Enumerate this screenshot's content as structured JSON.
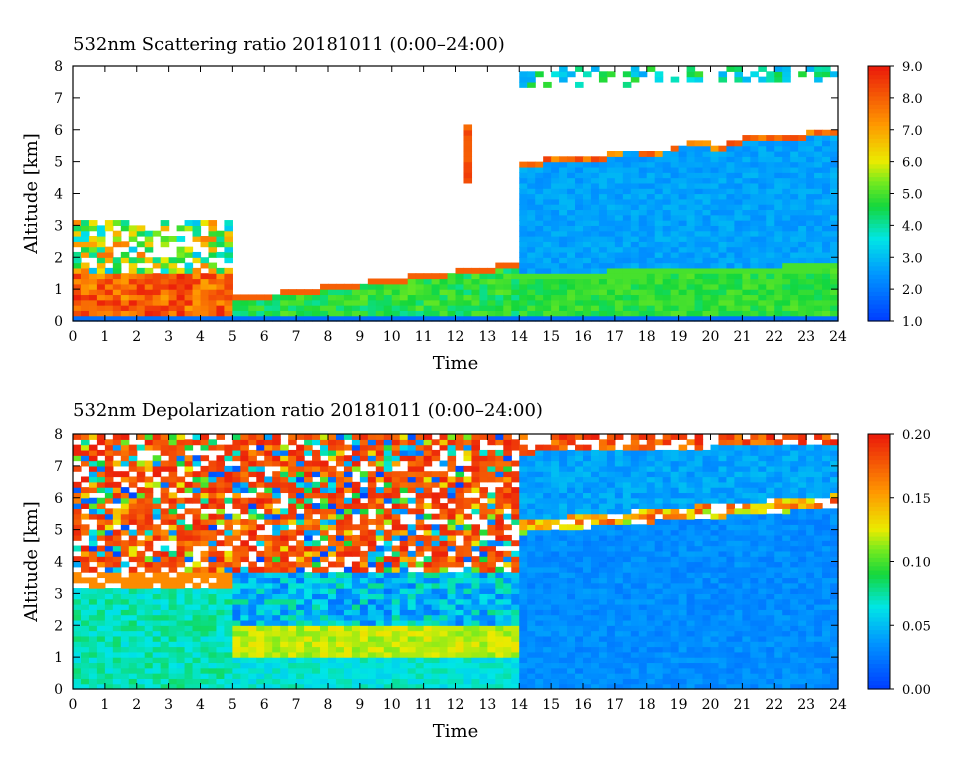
{
  "chart_data": [
    {
      "type": "heatmap",
      "title": "532nm Scattering ratio  20181011 (0:00–24:00)",
      "xlabel": "Time",
      "ylabel": "Altitude [km]",
      "xlim": [
        0,
        24
      ],
      "ylim": [
        0,
        8
      ],
      "x_ticks": [
        "0",
        "1",
        "2",
        "3",
        "4",
        "5",
        "6",
        "7",
        "8",
        "9",
        "10",
        "11",
        "12",
        "13",
        "14",
        "15",
        "16",
        "17",
        "18",
        "19",
        "20",
        "21",
        "22",
        "23",
        "24"
      ],
      "y_ticks": [
        "0",
        "1",
        "2",
        "3",
        "4",
        "5",
        "6",
        "7",
        "8"
      ],
      "colorbar": {
        "min": 1.0,
        "max": 9.0,
        "tick_labels": [
          "1.0",
          "2.0",
          "3.0",
          "4.0",
          "5.0",
          "6.0",
          "7.0",
          "8.0",
          "9.0"
        ]
      },
      "features": [
        {
          "description": "surface aerosol layer",
          "time": [
            0,
            24
          ],
          "altitude_top": [
            1.0,
            1.8
          ],
          "value": 4.0
        },
        {
          "description": "low cloud / aerosol",
          "time": [
            0,
            5
          ],
          "altitude": [
            0.3,
            3.4
          ],
          "value": 8.5
        },
        {
          "description": "thin cloud",
          "time": [
            12.3,
            12.4
          ],
          "altitude": [
            4.3,
            6.2
          ],
          "value": 8.5
        },
        {
          "description": "cirrus deck",
          "time": [
            14,
            24
          ],
          "altitude": [
            5,
            7.6
          ],
          "value": 2.3
        }
      ]
    },
    {
      "type": "heatmap",
      "title": "532nm Depolarization ratio  20181011 (0:00–24:00)",
      "xlabel": "Time",
      "ylabel": "Altitude [km]",
      "xlim": [
        0,
        24
      ],
      "ylim": [
        0,
        8
      ],
      "x_ticks": [
        "0",
        "1",
        "2",
        "3",
        "4",
        "5",
        "6",
        "7",
        "8",
        "9",
        "10",
        "11",
        "12",
        "13",
        "14",
        "15",
        "16",
        "17",
        "18",
        "19",
        "20",
        "21",
        "22",
        "23",
        "24"
      ],
      "y_ticks": [
        "0",
        "1",
        "2",
        "3",
        "4",
        "5",
        "6",
        "7",
        "8"
      ],
      "colorbar": {
        "min": 0.0,
        "max": 0.2,
        "tick_labels": [
          "0.00",
          "0.05",
          "0.10",
          "0.15",
          "0.20"
        ]
      },
      "features": [
        {
          "description": "noisy free troposphere",
          "time": [
            0,
            14
          ],
          "altitude": [
            3.5,
            8
          ],
          "value": 0.18
        },
        {
          "description": "low aerosol layer",
          "time": [
            0,
            5
          ],
          "altitude": [
            0,
            3.2
          ],
          "value": 0.06
        },
        {
          "description": "dust layer",
          "time": [
            5,
            14
          ],
          "altitude": [
            1.0,
            2.0
          ],
          "value": 0.1
        },
        {
          "description": "cirrus deck",
          "time": [
            14,
            24
          ],
          "altitude": [
            0,
            7.5
          ],
          "value": 0.02
        }
      ]
    }
  ]
}
